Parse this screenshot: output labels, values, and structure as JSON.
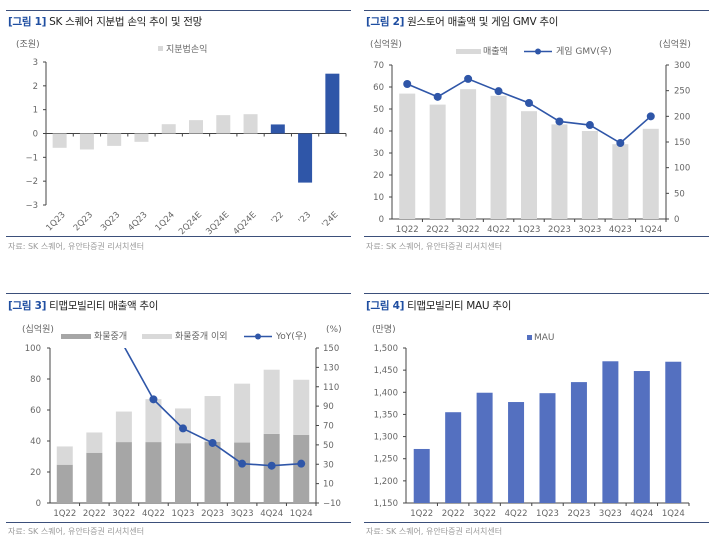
{
  "colors": {
    "accent_blue": "#2f56a8",
    "light_gray_bar": "#d9d9d9",
    "dark_gray_bar": "#a6a6a6",
    "mau_blue": "#5470c0",
    "frame_line": "#3b4f7a"
  },
  "chart_data": [
    {
      "id": "fig1",
      "type": "bar",
      "fig_label": "[그림 1]",
      "title": "SK 스퀘어 지분법 손익 추이 및 전망",
      "ylabel": "(조원)",
      "legend": [
        "지분법손익"
      ],
      "legend_placement": "top-center",
      "categories": [
        "1Q23",
        "2Q23",
        "3Q23",
        "4Q23",
        "1Q24",
        "2Q24E",
        "3Q24E",
        "4Q24E",
        "'22",
        "'23",
        "'24E"
      ],
      "values": [
        -0.6,
        -0.67,
        -0.52,
        -0.35,
        0.39,
        0.56,
        0.77,
        0.81,
        0.38,
        -2.06,
        2.51
      ],
      "bar_colors": [
        "gray",
        "gray",
        "gray",
        "gray",
        "gray",
        "gray",
        "gray",
        "gray",
        "blue",
        "blue",
        "blue"
      ],
      "ylim": [
        -3,
        3
      ],
      "yticks": [
        3,
        2,
        1,
        0,
        -1,
        -2,
        -3
      ],
      "ytick_labels": [
        "3",
        "2",
        "1",
        "0",
        "−1",
        "−2",
        "−3"
      ],
      "grid": false,
      "source": "자료: SK 스퀘어, 유안타증권 리서치센터"
    },
    {
      "id": "fig2",
      "type": "bar+line",
      "fig_label": "[그림 2]",
      "title": "원스토어 매출액 및 게임 GMV 추이",
      "ylabel_left": "(십억원)",
      "ylabel_right": "(십억원)",
      "legend": [
        "매출액",
        "게임 GMV(우)"
      ],
      "legend_placement": "top-center",
      "categories": [
        "1Q22",
        "2Q22",
        "3Q22",
        "4Q22",
        "1Q23",
        "2Q23",
        "3Q23",
        "4Q23",
        "1Q24"
      ],
      "series": [
        {
          "name": "매출액",
          "axis": "left",
          "kind": "bar",
          "values": [
            57,
            52,
            59,
            56,
            49,
            43,
            40,
            34,
            41
          ]
        },
        {
          "name": "게임 GMV(우)",
          "axis": "right",
          "kind": "line",
          "values": [
            263,
            238,
            273,
            249,
            226,
            190,
            183,
            148,
            200
          ]
        }
      ],
      "ylim_left": [
        0,
        70
      ],
      "yticks_left": [
        0,
        10,
        20,
        30,
        40,
        50,
        60,
        70
      ],
      "ylim_right": [
        0,
        300
      ],
      "yticks_right": [
        0,
        50,
        100,
        150,
        200,
        250,
        300
      ],
      "grid": false,
      "source": "자료: SK 스퀘어, 유안타증권 리서치센터"
    },
    {
      "id": "fig3",
      "type": "stacked-bar+line",
      "fig_label": "[그림 3]",
      "title": "티맵모빌리티 매출액 추이",
      "ylabel_left": "(십억원)",
      "ylabel_right": "(%)",
      "legend": [
        "화물중개",
        "화물중개 이외",
        "YoY(우)"
      ],
      "legend_placement": "top-center",
      "categories": [
        "1Q22",
        "2Q22",
        "3Q22",
        "4Q22",
        "1Q23",
        "2Q23",
        "3Q23",
        "4Q24",
        "1Q24"
      ],
      "series": [
        {
          "name": "화물중개",
          "axis": "left",
          "kind": "bar",
          "values": [
            24.7,
            32.4,
            39.3,
            39.3,
            38.6,
            39.5,
            39,
            44.6,
            44
          ]
        },
        {
          "name": "화물중개 이외",
          "axis": "left",
          "kind": "bar",
          "values": [
            11.8,
            13.1,
            19.7,
            27.7,
            22.4,
            29.5,
            38,
            41.4,
            35.5
          ]
        },
        {
          "name": "YoY(우)",
          "axis": "right",
          "kind": "line",
          "values": [
            null,
            null,
            152,
            97,
            67,
            52,
            30.6,
            28.5,
            30.6
          ]
        }
      ],
      "ylim_left": [
        0,
        100
      ],
      "yticks_left": [
        0,
        20,
        40,
        60,
        80,
        100
      ],
      "ylim_right": [
        -10,
        150
      ],
      "yticks_right": [
        -10,
        10,
        30,
        50,
        70,
        90,
        110,
        130,
        150
      ],
      "ytick_labels_right": [
        "−10",
        "10",
        "30",
        "50",
        "70",
        "90",
        "110",
        "130",
        "150"
      ],
      "grid": false,
      "source": "자료: SK 스퀘어, 유안타증권 리서치센터"
    },
    {
      "id": "fig4",
      "type": "bar",
      "fig_label": "[그림 4]",
      "title": "티맵모빌리티 MAU 추이",
      "ylabel": "(만명)",
      "legend": [
        "MAU"
      ],
      "legend_placement": "top-center",
      "categories": [
        "1Q22",
        "2Q22",
        "3Q22",
        "4Q22",
        "1Q23",
        "2Q23",
        "3Q23",
        "4Q24",
        "1Q24"
      ],
      "values": [
        1272,
        1355,
        1399,
        1378,
        1398,
        1423,
        1470,
        1448,
        1469
      ],
      "ylim": [
        1150,
        1500
      ],
      "yticks": [
        1150,
        1200,
        1250,
        1300,
        1350,
        1400,
        1450,
        1500
      ],
      "ytick_labels": [
        "1,150",
        "1,200",
        "1,250",
        "1,300",
        "1,350",
        "1,400",
        "1,450",
        "1,500"
      ],
      "grid": false,
      "source": "자료: SK 스퀘어, 유안타증권 리서치센터"
    }
  ]
}
